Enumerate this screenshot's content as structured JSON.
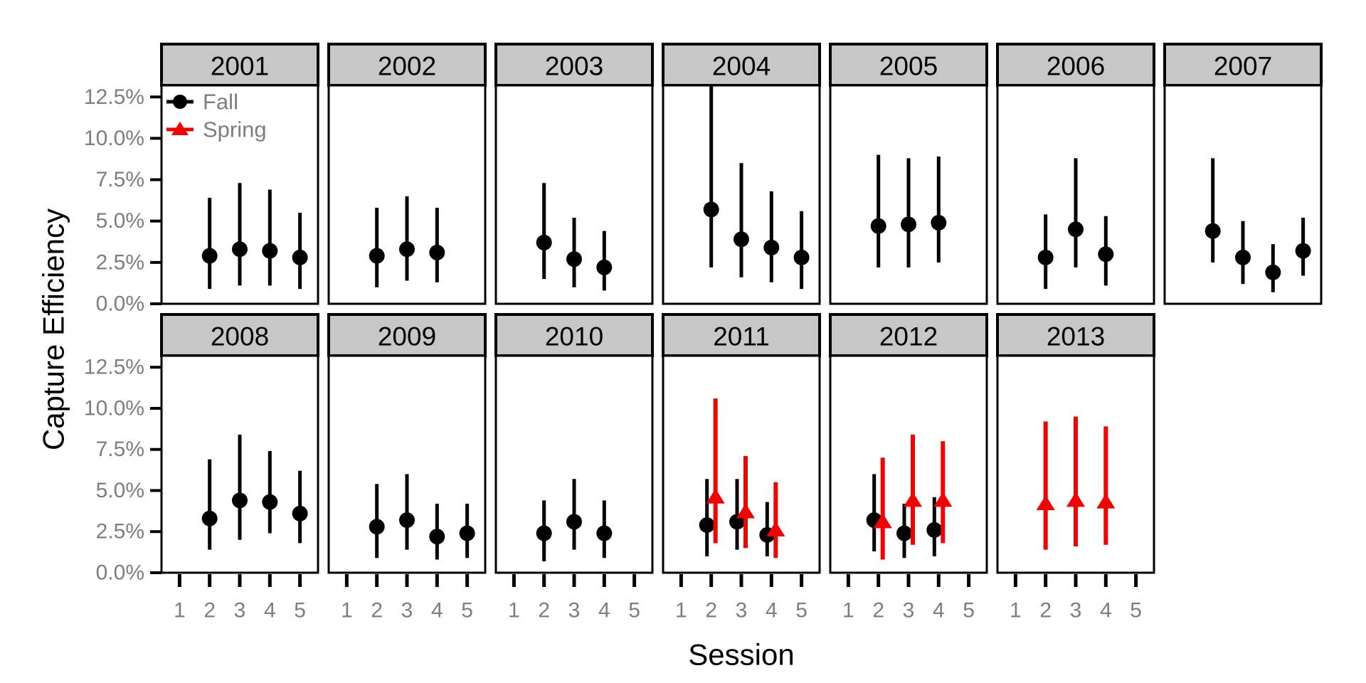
{
  "chart_data": {
    "type": "pointrange",
    "title": "",
    "xlabel": "Session",
    "ylabel": "Capture Efficiency",
    "x_tick_labels": [
      "1",
      "2",
      "3",
      "4",
      "5"
    ],
    "x_tick_values": [
      1,
      2,
      3,
      4,
      5
    ],
    "y_tick_labels": [
      "0.0%",
      "2.5%",
      "5.0%",
      "7.5%",
      "10.0%",
      "12.5%"
    ],
    "y_tick_values": [
      0,
      2.5,
      5.0,
      7.5,
      10.0,
      12.5
    ],
    "ylim": [
      0,
      13.2
    ],
    "xlim": [
      0.4,
      5.6
    ],
    "grid": "off",
    "facet_layout": {
      "ncol": 7,
      "nrow": 2,
      "row1_years": [
        "2001",
        "2002",
        "2003",
        "2004",
        "2005",
        "2006",
        "2007"
      ],
      "row2_years": [
        "2008",
        "2009",
        "2010",
        "2011",
        "2012",
        "2013"
      ]
    },
    "legend": {
      "position": "inside top-left of first panel",
      "items": [
        {
          "label": "Fall",
          "shape": "circle",
          "color": "#000000"
        },
        {
          "label": "Spring",
          "shape": "triangle",
          "color": "#f40000"
        }
      ]
    },
    "facets": [
      {
        "year": "2001",
        "row": 0,
        "col": 0,
        "fall": [
          {
            "session": 2,
            "mid": 2.9,
            "lo": 0.9,
            "hi": 6.4
          },
          {
            "session": 3,
            "mid": 3.3,
            "lo": 1.1,
            "hi": 7.3
          },
          {
            "session": 4,
            "mid": 3.2,
            "lo": 1.1,
            "hi": 6.9
          },
          {
            "session": 5,
            "mid": 2.8,
            "lo": 0.9,
            "hi": 5.5
          }
        ],
        "spring": []
      },
      {
        "year": "2002",
        "row": 0,
        "col": 1,
        "fall": [
          {
            "session": 2,
            "mid": 2.9,
            "lo": 1.0,
            "hi": 5.8
          },
          {
            "session": 3,
            "mid": 3.3,
            "lo": 1.4,
            "hi": 6.5
          },
          {
            "session": 4,
            "mid": 3.1,
            "lo": 1.3,
            "hi": 5.8
          }
        ],
        "spring": []
      },
      {
        "year": "2003",
        "row": 0,
        "col": 2,
        "fall": [
          {
            "session": 2,
            "mid": 3.7,
            "lo": 1.5,
            "hi": 7.3
          },
          {
            "session": 3,
            "mid": 2.7,
            "lo": 1.0,
            "hi": 5.2
          },
          {
            "session": 4,
            "mid": 2.2,
            "lo": 0.8,
            "hi": 4.4
          }
        ],
        "spring": []
      },
      {
        "year": "2004",
        "row": 0,
        "col": 3,
        "fall": [
          {
            "session": 2,
            "mid": 5.7,
            "lo": 2.2,
            "hi": 13.5,
            "clipped_top": true
          },
          {
            "session": 3,
            "mid": 3.9,
            "lo": 1.6,
            "hi": 8.5
          },
          {
            "session": 4,
            "mid": 3.4,
            "lo": 1.3,
            "hi": 6.8
          },
          {
            "session": 5,
            "mid": 2.8,
            "lo": 0.9,
            "hi": 5.6
          }
        ],
        "spring": []
      },
      {
        "year": "2005",
        "row": 0,
        "col": 4,
        "fall": [
          {
            "session": 2,
            "mid": 4.7,
            "lo": 2.2,
            "hi": 9.0
          },
          {
            "session": 3,
            "mid": 4.8,
            "lo": 2.2,
            "hi": 8.8
          },
          {
            "session": 4,
            "mid": 4.9,
            "lo": 2.5,
            "hi": 8.9
          }
        ],
        "spring": []
      },
      {
        "year": "2006",
        "row": 0,
        "col": 5,
        "fall": [
          {
            "session": 2,
            "mid": 2.8,
            "lo": 0.9,
            "hi": 5.4
          },
          {
            "session": 3,
            "mid": 4.5,
            "lo": 2.2,
            "hi": 8.8
          },
          {
            "session": 4,
            "mid": 3.0,
            "lo": 1.1,
            "hi": 5.3
          }
        ],
        "spring": []
      },
      {
        "year": "2007",
        "row": 0,
        "col": 6,
        "fall": [
          {
            "session": 2,
            "mid": 4.4,
            "lo": 2.5,
            "hi": 8.8
          },
          {
            "session": 3,
            "mid": 2.8,
            "lo": 1.2,
            "hi": 5.0
          },
          {
            "session": 4,
            "mid": 1.9,
            "lo": 0.7,
            "hi": 3.6
          },
          {
            "session": 5,
            "mid": 3.2,
            "lo": 1.7,
            "hi": 5.2
          }
        ],
        "spring": []
      },
      {
        "year": "2008",
        "row": 1,
        "col": 0,
        "fall": [
          {
            "session": 2,
            "mid": 3.3,
            "lo": 1.4,
            "hi": 6.9
          },
          {
            "session": 3,
            "mid": 4.4,
            "lo": 2.0,
            "hi": 8.4
          },
          {
            "session": 4,
            "mid": 4.3,
            "lo": 2.4,
            "hi": 7.4
          },
          {
            "session": 5,
            "mid": 3.6,
            "lo": 1.8,
            "hi": 6.2
          }
        ],
        "spring": []
      },
      {
        "year": "2009",
        "row": 1,
        "col": 1,
        "fall": [
          {
            "session": 2,
            "mid": 2.8,
            "lo": 0.9,
            "hi": 5.4
          },
          {
            "session": 3,
            "mid": 3.2,
            "lo": 1.4,
            "hi": 6.0
          },
          {
            "session": 4,
            "mid": 2.2,
            "lo": 0.8,
            "hi": 4.2
          },
          {
            "session": 5,
            "mid": 2.4,
            "lo": 0.9,
            "hi": 4.2
          }
        ],
        "spring": []
      },
      {
        "year": "2010",
        "row": 1,
        "col": 2,
        "fall": [
          {
            "session": 2,
            "mid": 2.4,
            "lo": 0.7,
            "hi": 4.4
          },
          {
            "session": 3,
            "mid": 3.1,
            "lo": 1.4,
            "hi": 5.7
          },
          {
            "session": 4,
            "mid": 2.4,
            "lo": 0.9,
            "hi": 4.4
          }
        ],
        "spring": []
      },
      {
        "year": "2011",
        "row": 1,
        "col": 3,
        "fall": [
          {
            "session": 2,
            "mid": 2.9,
            "lo": 1.0,
            "hi": 5.7
          },
          {
            "session": 3,
            "mid": 3.1,
            "lo": 1.4,
            "hi": 5.7
          },
          {
            "session": 4,
            "mid": 2.3,
            "lo": 1.0,
            "hi": 4.3
          }
        ],
        "spring": [
          {
            "session": 2,
            "mid": 4.6,
            "lo": 1.8,
            "hi": 10.6
          },
          {
            "session": 3,
            "mid": 3.7,
            "lo": 1.5,
            "hi": 7.1
          },
          {
            "session": 4,
            "mid": 2.6,
            "lo": 0.9,
            "hi": 5.5
          }
        ]
      },
      {
        "year": "2012",
        "row": 1,
        "col": 4,
        "fall": [
          {
            "session": 2,
            "mid": 3.2,
            "lo": 1.3,
            "hi": 6.0
          },
          {
            "session": 3,
            "mid": 2.4,
            "lo": 0.9,
            "hi": 4.2
          },
          {
            "session": 4,
            "mid": 2.6,
            "lo": 1.0,
            "hi": 4.6
          }
        ],
        "spring": [
          {
            "session": 2,
            "mid": 3.1,
            "lo": 0.8,
            "hi": 7.0
          },
          {
            "session": 3,
            "mid": 4.4,
            "lo": 1.7,
            "hi": 8.4
          },
          {
            "session": 4,
            "mid": 4.4,
            "lo": 1.8,
            "hi": 8.0
          }
        ]
      },
      {
        "year": "2013",
        "row": 1,
        "col": 5,
        "fall": [],
        "spring": [
          {
            "session": 2,
            "mid": 4.2,
            "lo": 1.4,
            "hi": 9.2
          },
          {
            "session": 3,
            "mid": 4.4,
            "lo": 1.6,
            "hi": 9.5
          },
          {
            "session": 4,
            "mid": 4.3,
            "lo": 1.7,
            "hi": 8.9
          }
        ]
      }
    ]
  },
  "colors": {
    "fall": "#000000",
    "spring": "#f40000",
    "strip_fill": "#c7c7c7",
    "panel_border": "#000000",
    "tick_label": "#7e7e7e",
    "legend_label": "#7e7e7e",
    "axis_title": "#000000",
    "background": "#ffffff"
  }
}
